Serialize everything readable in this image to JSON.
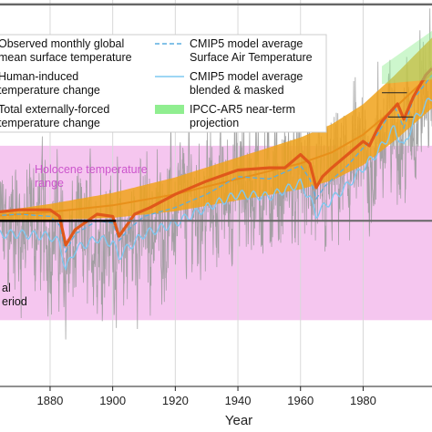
{
  "chart_data": {
    "type": "line",
    "xlabel": "Year",
    "ylabel": "",
    "xlim": [
      1864,
      2002
    ],
    "ylim": [
      -0.75,
      1.0
    ],
    "x_ticks": [
      "1880",
      "1900",
      "1920",
      "1940",
      "1960",
      "1980"
    ],
    "grid": true,
    "legend_placement": "top-left",
    "legend": [
      {
        "text": "Observed monthly global mean surface temperature",
        "lines": [
          "Observed monthly global",
          "mean surface temperature"
        ],
        "style": "grey-line"
      },
      {
        "text": "Human-induced temperature change",
        "lines": [
          "Human-induced",
          "temperature change"
        ],
        "style": "orange-line"
      },
      {
        "text": "Total externally-forced temperature change",
        "lines": [
          "Total externally-forced",
          "temperature change"
        ],
        "style": "dark-orange-line"
      },
      {
        "text": "CMIP5 model average Surface Air Temperature",
        "lines": [
          "CMIP5 model average",
          "Surface Air Temperature"
        ],
        "style": "dashed-blue-line"
      },
      {
        "text": "CMIP5 model average blended & masked",
        "lines": [
          "CMIP5 model average",
          "blended & masked"
        ],
        "style": "light-blue-line"
      },
      {
        "text": "IPCC-AR5 near-term projection",
        "lines": [
          "IPCC-AR5 near-term",
          "projection"
        ],
        "style": "green-patch"
      }
    ],
    "annotations": {
      "holocene": [
        "Holocene temperature",
        "range"
      ],
      "preindustrial": [
        "al",
        "eriod"
      ]
    },
    "holocene_range": [
      -0.45,
      0.34
    ],
    "preindustrial_level": 0.0,
    "upper_reference_level": 0.98,
    "series": [
      {
        "key": "total_forced",
        "x": [
          1850,
          1870,
          1880,
          1883,
          1885,
          1888,
          1895,
          1900,
          1902,
          1904,
          1907,
          1912,
          1920,
          1930,
          1940,
          1950,
          1955,
          1960,
          1963,
          1965,
          1967,
          1970,
          1975,
          1980,
          1982,
          1984,
          1986,
          1991,
          1993,
          1996,
          2000,
          2002
        ],
        "values": [
          0.02,
          0.05,
          0.05,
          0.02,
          -0.11,
          -0.04,
          0.03,
          0.02,
          -0.07,
          -0.03,
          0.03,
          0.06,
          0.12,
          0.18,
          0.23,
          0.24,
          0.24,
          0.3,
          0.26,
          0.15,
          0.2,
          0.24,
          0.3,
          0.36,
          0.34,
          0.4,
          0.45,
          0.53,
          0.46,
          0.56,
          0.66,
          0.69
        ]
      },
      {
        "key": "human_induced",
        "x": [
          1850,
          1880,
          1900,
          1920,
          1940,
          1960,
          1970,
          1980,
          1990,
          2002
        ],
        "values": [
          0.01,
          0.04,
          0.07,
          0.12,
          0.19,
          0.26,
          0.31,
          0.39,
          0.51,
          0.67
        ]
      },
      {
        "key": "cmip5_sat",
        "x": [
          1860,
          1870,
          1880,
          1883,
          1885,
          1888,
          1895,
          1900,
          1902,
          1905,
          1910,
          1920,
          1930,
          1940,
          1950,
          1960,
          1963,
          1965,
          1968,
          1975,
          1980,
          1984,
          1990,
          1993,
          1996,
          2002
        ],
        "values": [
          0.02,
          0.03,
          0.02,
          -0.02,
          -0.14,
          -0.06,
          0.0,
          -0.01,
          -0.09,
          -0.04,
          0.02,
          0.06,
          0.12,
          0.2,
          0.19,
          0.25,
          0.19,
          0.1,
          0.16,
          0.25,
          0.33,
          0.38,
          0.52,
          0.42,
          0.55,
          0.66
        ]
      },
      {
        "key": "cmip5_blended",
        "x": [
          1864,
          1870,
          1880,
          1883,
          1885,
          1888,
          1895,
          1900,
          1902,
          1905,
          1910,
          1920,
          1930,
          1940,
          1950,
          1960,
          1963,
          1965,
          1968,
          1975,
          1980,
          1984,
          1990,
          1993,
          1996,
          2002
        ],
        "values": [
          -0.06,
          -0.06,
          -0.07,
          -0.1,
          -0.22,
          -0.13,
          -0.08,
          -0.1,
          -0.16,
          -0.12,
          -0.06,
          -0.01,
          0.06,
          0.12,
          0.11,
          0.17,
          0.1,
          0.03,
          0.07,
          0.16,
          0.24,
          0.3,
          0.42,
          0.33,
          0.45,
          0.56
        ]
      },
      {
        "key": "projection",
        "x": [
          1986,
          2002
        ],
        "values": [
          0.66,
          0.74
        ]
      }
    ]
  }
}
